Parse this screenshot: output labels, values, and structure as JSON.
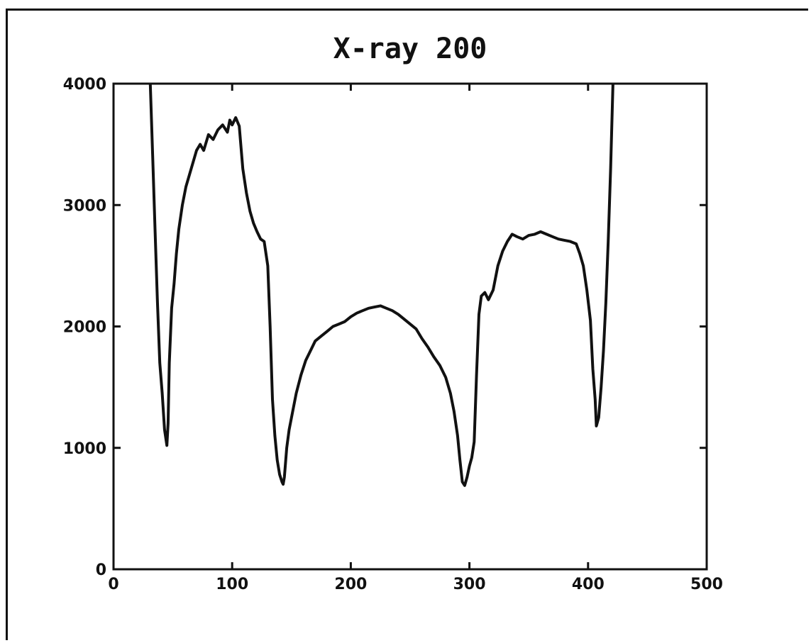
{
  "chart_data": {
    "type": "line",
    "title": "X-ray 200",
    "xlabel": "",
    "ylabel": "",
    "xlim": [
      0,
      500
    ],
    "ylim": [
      0,
      4000
    ],
    "x_ticks": [
      0,
      100,
      200,
      300,
      400,
      500
    ],
    "y_ticks": [
      0,
      1000,
      2000,
      3000,
      4000
    ],
    "grid": false,
    "legend": "none",
    "line_color": "#111111",
    "series": [
      {
        "x": [
          31,
          33,
          35,
          37,
          39,
          41,
          43,
          45,
          46,
          47,
          49,
          51,
          53,
          55,
          58,
          61,
          64,
          67,
          70,
          73,
          76,
          80,
          84,
          88,
          92,
          96,
          98,
          100,
          103,
          106,
          109,
          112,
          115,
          118,
          121,
          124,
          127,
          130,
          132,
          134,
          136,
          138,
          140,
          142,
          143,
          144,
          146,
          148,
          151,
          154,
          158,
          162,
          166,
          170,
          175,
          180,
          185,
          190,
          195,
          200,
          205,
          210,
          215,
          220,
          225,
          230,
          235,
          240,
          245,
          250,
          255,
          260,
          265,
          270,
          275,
          280,
          284,
          287,
          290,
          292,
          294,
          296,
          298,
          300,
          302,
          304,
          306,
          308,
          310,
          313,
          316,
          320,
          324,
          328,
          332,
          336,
          340,
          345,
          350,
          355,
          360,
          365,
          370,
          375,
          380,
          385,
          390,
          393,
          396,
          399,
          402,
          404,
          406,
          407,
          409,
          411,
          413,
          415,
          417,
          419,
          421
        ],
        "y": [
          4000,
          3400,
          2800,
          2200,
          1700,
          1450,
          1150,
          1020,
          1200,
          1700,
          2150,
          2350,
          2600,
          2800,
          3000,
          3150,
          3250,
          3350,
          3450,
          3500,
          3450,
          3580,
          3540,
          3620,
          3660,
          3600,
          3700,
          3660,
          3720,
          3650,
          3300,
          3100,
          2950,
          2850,
          2780,
          2720,
          2700,
          2500,
          2000,
          1400,
          1100,
          900,
          780,
          720,
          700,
          760,
          1000,
          1150,
          1300,
          1450,
          1600,
          1720,
          1800,
          1880,
          1920,
          1960,
          2000,
          2020,
          2040,
          2080,
          2110,
          2130,
          2150,
          2160,
          2170,
          2150,
          2130,
          2100,
          2060,
          2020,
          1980,
          1900,
          1830,
          1750,
          1680,
          1580,
          1450,
          1300,
          1100,
          900,
          720,
          690,
          760,
          850,
          920,
          1050,
          1600,
          2100,
          2250,
          2280,
          2220,
          2300,
          2500,
          2620,
          2700,
          2760,
          2740,
          2720,
          2750,
          2760,
          2780,
          2760,
          2740,
          2720,
          2710,
          2700,
          2680,
          2600,
          2500,
          2300,
          2050,
          1650,
          1400,
          1180,
          1250,
          1500,
          1800,
          2200,
          2700,
          3300,
          4000
        ]
      }
    ]
  }
}
